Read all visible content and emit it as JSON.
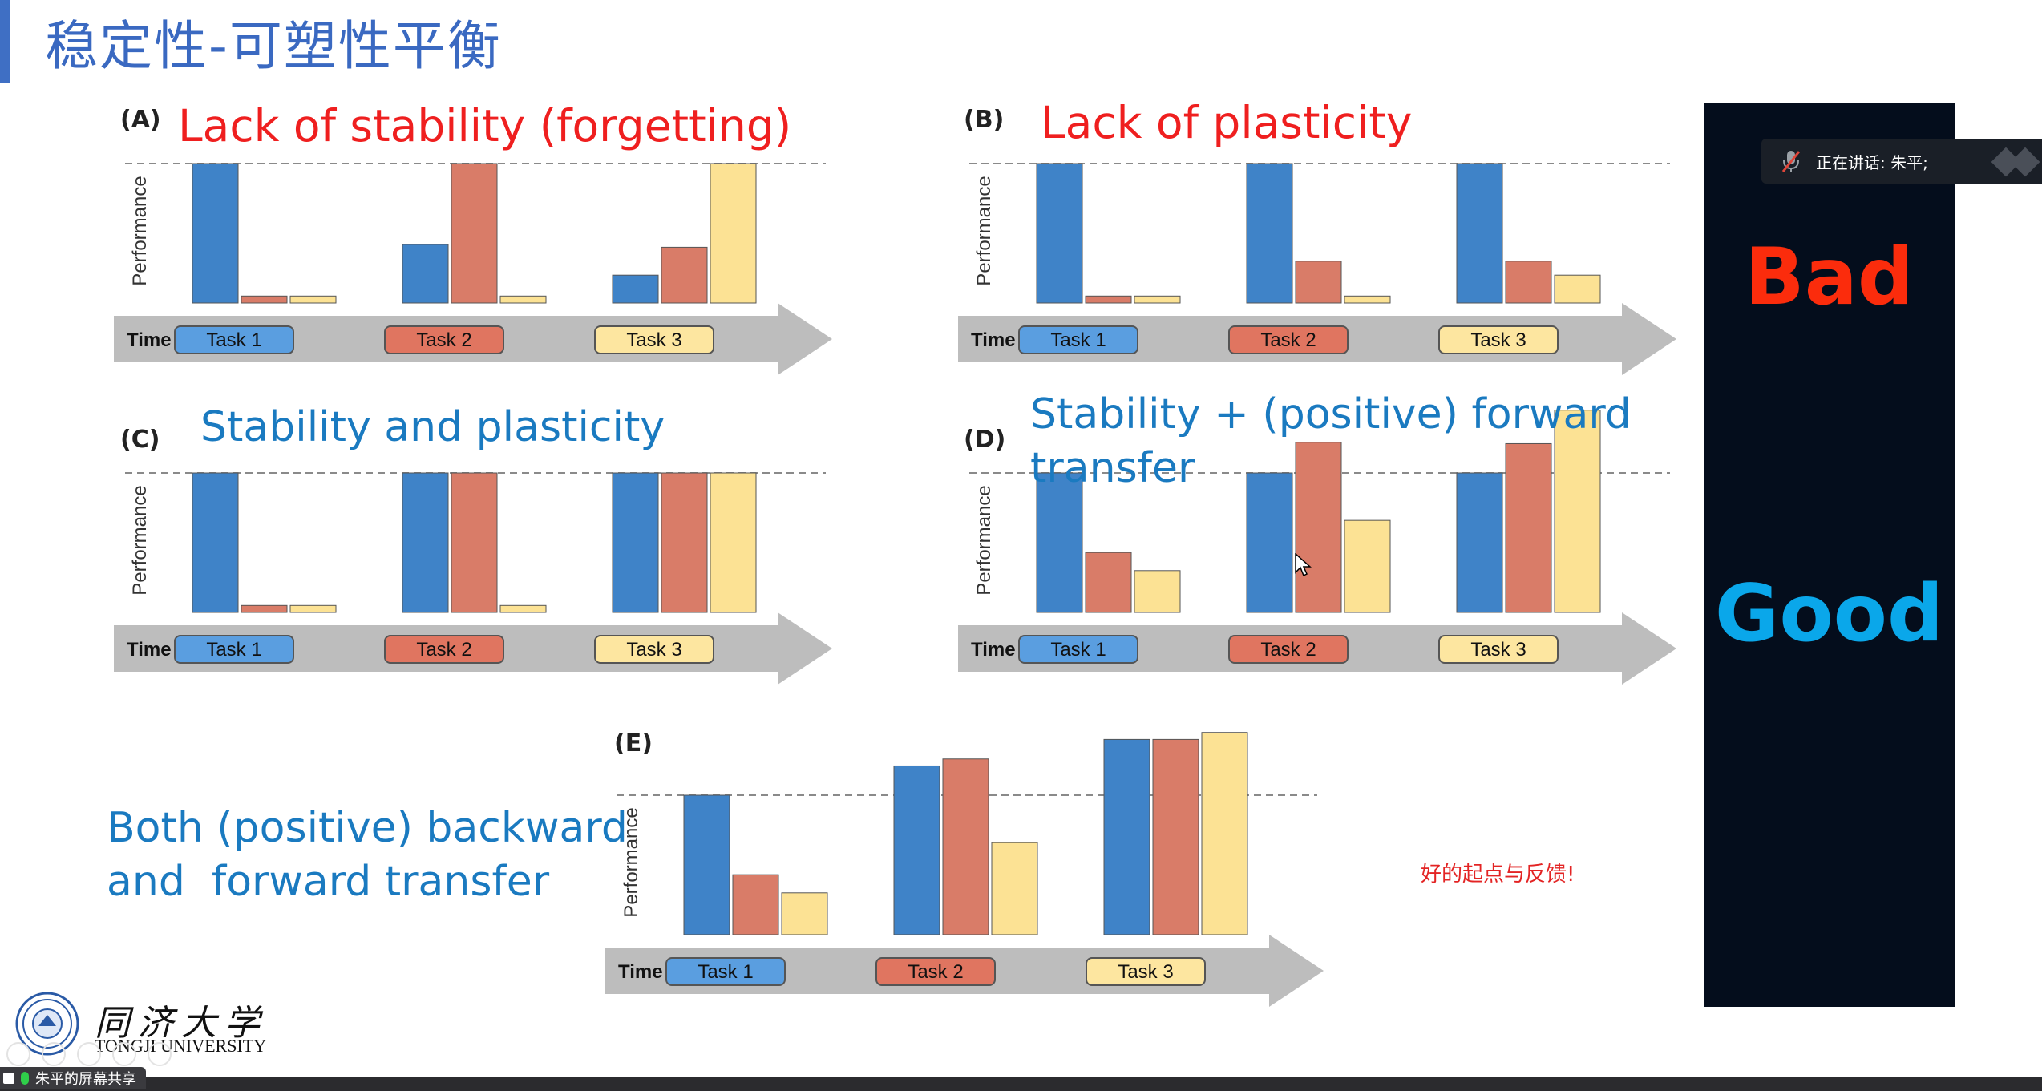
{
  "slide": {
    "title": "稳定性-可塑性平衡"
  },
  "panels": [
    {
      "key": "A",
      "letter": "(A)",
      "heading": "Lack of stability (forgetting)",
      "heading_color": "red",
      "values": [
        [
          1.0,
          0.05,
          0.05
        ],
        [
          0.42,
          1.0,
          0.05
        ],
        [
          0.2,
          0.4,
          1.0
        ]
      ]
    },
    {
      "key": "B",
      "letter": "(B)",
      "heading": "Lack of plasticity",
      "heading_color": "red",
      "values": [
        [
          1.0,
          0.05,
          0.05
        ],
        [
          1.0,
          0.3,
          0.05
        ],
        [
          1.0,
          0.3,
          0.2
        ]
      ]
    },
    {
      "key": "C",
      "letter": "(C)",
      "heading": "Stability and  plasticity",
      "heading_color": "blue",
      "values": [
        [
          1.0,
          0.05,
          0.05
        ],
        [
          1.0,
          1.0,
          0.05
        ],
        [
          1.0,
          1.0,
          1.0
        ]
      ]
    },
    {
      "key": "D",
      "letter": "(D)",
      "heading": "Stability + (positive) forward\ntransfer",
      "heading_color": "blue",
      "values": [
        [
          1.0,
          0.43,
          0.3
        ],
        [
          1.0,
          1.22,
          0.66
        ],
        [
          1.0,
          1.21,
          1.45
        ]
      ]
    },
    {
      "key": "E",
      "letter": "(E)",
      "heading": "Both (positive) backward\nand  forward transfer",
      "heading_color": "blue",
      "values": [
        [
          1.0,
          0.43,
          0.3
        ],
        [
          1.21,
          1.26,
          0.66
        ],
        [
          1.4,
          1.4,
          1.45
        ]
      ]
    }
  ],
  "axis": {
    "y_label": "Performance",
    "x_label": "Time",
    "tasks": [
      "Task 1",
      "Task 2",
      "Task 3"
    ]
  },
  "colors": {
    "task1": "#3f83c8",
    "task2": "#d97c68",
    "task3": "#fce294",
    "task1_pill": "#5a9ee0",
    "task2_pill": "#e07560",
    "task3_pill": "#fde6a0",
    "arrow": "#bdbdbd"
  },
  "verdicts": {
    "bad": "Bad",
    "good": "Good"
  },
  "speaker": {
    "text": "正在讲话: 朱平;"
  },
  "note": "好的起点与反馈!",
  "university": {
    "name_cn": "同济大学",
    "name_en": "TONGJI UNIVERSITY"
  },
  "share": {
    "label": "朱平的屏幕共享"
  }
}
